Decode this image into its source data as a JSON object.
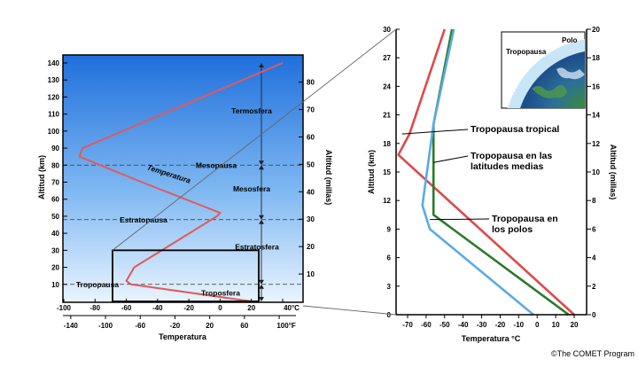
{
  "chart_data": [
    {
      "type": "line",
      "ylabel": "Altitud (km)",
      "ylabel_right": "Altitud (millas)",
      "xlabel": "Temperatura",
      "xlim_c": [
        -100,
        40
      ],
      "ylim": [
        0,
        145
      ],
      "y_ticks": [
        10,
        20,
        30,
        40,
        50,
        60,
        70,
        80,
        90,
        100,
        110,
        120,
        130,
        140
      ],
      "y_tick_labels": [
        "10",
        "20",
        "30",
        "40",
        "50",
        "60",
        "70",
        "80",
        "90",
        "100",
        "110",
        "120",
        "130",
        "140"
      ],
      "right_ticks_miles": [
        10,
        20,
        30,
        40,
        50,
        60,
        70,
        80
      ],
      "right_tick_labels": [
        "10",
        "20",
        "30",
        "40",
        "50",
        "60",
        "70",
        "80"
      ],
      "x_ticks_c": [
        -100,
        -80,
        -60,
        -40,
        -20,
        0,
        20,
        40
      ],
      "x_tick_labels_c": [
        "-100",
        "-80",
        "-60",
        "-40",
        "-20",
        "0",
        "20",
        "40°C"
      ],
      "x_ticks_f": [
        -140,
        -100,
        -60,
        -20,
        20,
        60,
        100
      ],
      "x_tick_labels_f": [
        "-140",
        "-100",
        "-60",
        "-20",
        "20",
        "60",
        "100°F"
      ],
      "series": [
        {
          "name": "Temperatura",
          "color": "#e05a5a",
          "x": [
            20,
            -57,
            -60,
            -55,
            -2,
            0,
            -50,
            -90,
            -88,
            40
          ],
          "y": [
            0,
            10,
            12,
            20,
            50,
            52,
            70,
            85,
            90,
            140
          ]
        }
      ],
      "layers": [
        {
          "name": "Termosfera",
          "y": 112
        },
        {
          "name": "Mesosfera",
          "y": 66
        },
        {
          "name": "Estratosfera",
          "y": 32
        },
        {
          "name": "Troposfera",
          "y": 5
        }
      ],
      "boundaries": [
        {
          "name": "Mesopausa",
          "y": 80
        },
        {
          "name": "Estratopausa",
          "y": 48
        },
        {
          "name": "Tropopausa",
          "y": 10
        }
      ],
      "zoom_box": {
        "x": [
          -80,
          20
        ],
        "y": [
          0,
          30
        ]
      }
    },
    {
      "type": "line",
      "xlabel": "Temperatura °C",
      "ylabel": "Altitud (km)",
      "ylabel_right": "Altitud (millas)",
      "xlim": [
        -80,
        25
      ],
      "ylim": [
        0,
        30
      ],
      "x_ticks": [
        -70,
        -60,
        -50,
        -40,
        -30,
        -20,
        -10,
        0,
        10,
        20
      ],
      "x_tick_labels": [
        "-70",
        "-60",
        "-50",
        "-40",
        "-30",
        "-20",
        "-10",
        "0",
        "10",
        "20"
      ],
      "y_ticks": [
        0,
        3,
        6,
        9,
        12,
        15,
        18,
        21,
        24,
        27,
        30
      ],
      "y_tick_labels": [
        "0",
        "3",
        "6",
        "9",
        "12",
        "15",
        "18",
        "21",
        "24",
        "27",
        "30"
      ],
      "right_ticks_miles": [
        0,
        2,
        4,
        6,
        8,
        10,
        12,
        14,
        16,
        18,
        20
      ],
      "right_tick_labels": [
        "0",
        "2",
        "4",
        "6",
        "8",
        "10",
        "12",
        "14",
        "16",
        "18",
        "20"
      ],
      "series": [
        {
          "name": "Tropopausa tropical",
          "color": "#e04848",
          "x": [
            20,
            -75,
            -69,
            -50
          ],
          "y": [
            0,
            16.8,
            19,
            30
          ]
        },
        {
          "name": "Tropopausa en las latitudes medias",
          "color": "#2a7a2a",
          "x": [
            17,
            -56,
            -56,
            -56,
            -46
          ],
          "y": [
            0,
            10.5,
            14,
            20,
            30
          ]
        },
        {
          "name": "Tropopausa en los polos",
          "color": "#5aaae8",
          "x": [
            -2,
            -58,
            -62,
            -56,
            -45
          ],
          "y": [
            0,
            9,
            11.5,
            20,
            30
          ]
        }
      ],
      "annotations": [
        {
          "lines": [
            "Tropopausa tropical"
          ],
          "x": -73,
          "y": 19
        },
        {
          "lines": [
            "Tropopausa en las",
            "latitudes medias"
          ],
          "x": -56,
          "y": 16
        },
        {
          "lines": [
            "Tropopausa en",
            "los polos"
          ],
          "x": -58,
          "y": 10
        }
      ]
    }
  ],
  "inset": {
    "label_left": "Tropopausa",
    "label_right": "Polo"
  },
  "credit": "©The COMET Program"
}
